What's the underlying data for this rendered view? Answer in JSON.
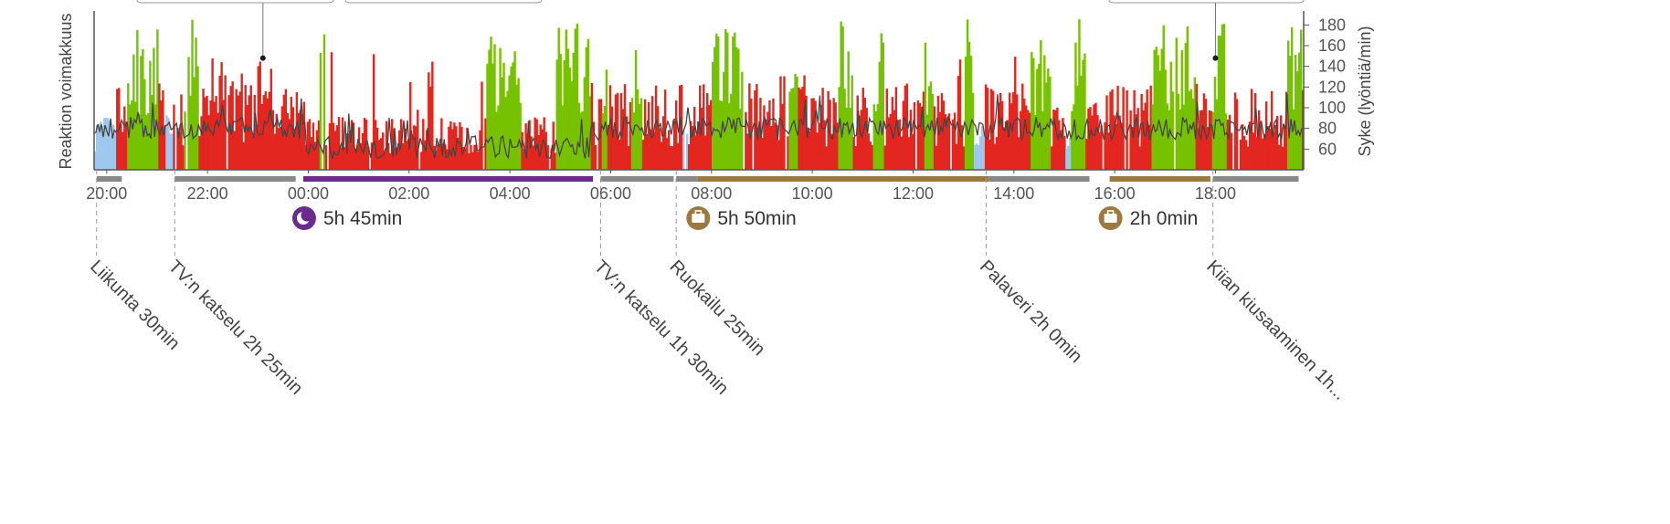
{
  "chart_data": {
    "type": "bar",
    "ylabel_left": "Reaktion voimakkuus",
    "ylabel_right": "Syke (lyöntiä/min)",
    "right_axis": {
      "ticks": [
        60,
        80,
        100,
        120,
        140,
        160,
        180
      ],
      "ylim": [
        40,
        190
      ]
    },
    "x_ticks": [
      "20:00",
      "22:00",
      "00:00",
      "02:00",
      "04:00",
      "06:00",
      "08:00",
      "10:00",
      "12:00",
      "14:00",
      "16:00",
      "18:00"
    ],
    "xlim_hours": [
      19.75,
      43.75
    ],
    "legend": [],
    "colors": {
      "stress": "#e3261f",
      "recovery": "#77c200",
      "light": "#9ec8f0",
      "heart_rate_line": "#444444",
      "marker_dot": "#1a1a1a",
      "sleep": "#6a2c8c",
      "work": "#9a7a40",
      "other": "#888888"
    },
    "heart_rate_markers": [
      {
        "time": 23.1,
        "bpm": 148
      },
      {
        "time": 42.0,
        "bpm": 148
      }
    ],
    "segments": [
      {
        "start": 19.8,
        "end": 20.3,
        "type": "other"
      },
      {
        "start": 21.35,
        "end": 23.75,
        "type": "other"
      },
      {
        "start": 23.9,
        "end": 29.65,
        "type": "sleep",
        "label": "5h 45min",
        "icon": "moon-icon"
      },
      {
        "start": 29.8,
        "end": 31.25,
        "type": "other"
      },
      {
        "start": 31.3,
        "end": 31.72,
        "type": "other"
      },
      {
        "start": 31.72,
        "end": 37.5,
        "type": "work",
        "label": "5h 50min",
        "icon": "briefcase-icon"
      },
      {
        "start": 37.5,
        "end": 39.5,
        "type": "other"
      },
      {
        "start": 39.9,
        "end": 41.9,
        "type": "work",
        "label": "2h 0min",
        "icon": "briefcase-icon"
      },
      {
        "start": 41.95,
        "end": 43.65,
        "type": "other"
      }
    ],
    "events": [
      {
        "time": 19.8,
        "label": "Liikunta 30min"
      },
      {
        "time": 21.35,
        "label": "TV:n katselu 2h 25min"
      },
      {
        "time": 29.8,
        "label": "TV:n katselu 1h 30min"
      },
      {
        "time": 31.3,
        "label": "Ruokailu 25min"
      },
      {
        "time": 37.45,
        "label": "Palaveri 2h 0min"
      },
      {
        "time": 41.95,
        "label": "Kiian kiusaaminen 1h..."
      }
    ]
  }
}
